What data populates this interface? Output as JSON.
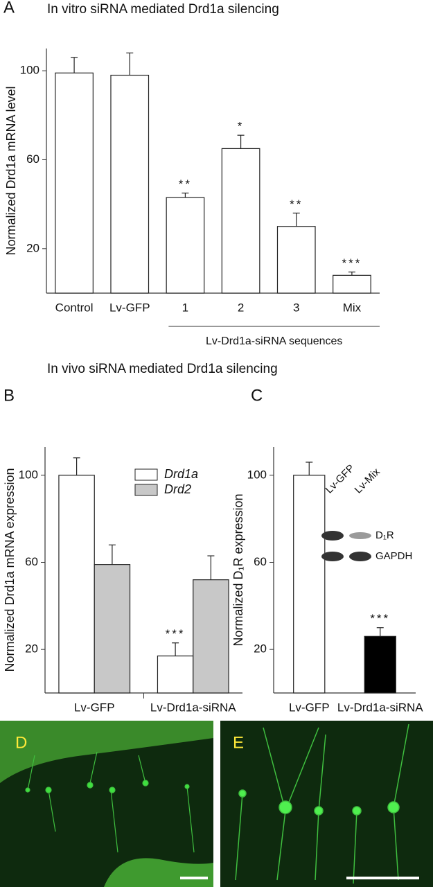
{
  "chart_data": [
    {
      "type": "bar",
      "panel": "A",
      "title": "In vitro siRNA mediated Drd1a silencing",
      "ylabel": "Normalized Drd1a mRNA level",
      "categories": [
        "Control",
        "Lv-GFP",
        "1",
        "2",
        "3",
        "Mix"
      ],
      "series": [
        {
          "color": "#ffffff",
          "values": [
            99,
            98,
            43,
            65,
            30,
            8
          ],
          "errors": [
            7,
            10,
            2,
            6,
            6,
            1.5
          ],
          "significance": [
            null,
            null,
            "**",
            "*",
            "**",
            "***"
          ]
        }
      ],
      "group_label": "Lv-Drd1a-siRNA sequences",
      "ylim": [
        0,
        110
      ],
      "yticks": [
        20,
        60,
        100
      ]
    },
    {
      "type": "bar",
      "panel": "B",
      "title": "In vivo siRNA mediated Drd1a silencing",
      "ylabel": "Normalized Drd1a mRNA expression",
      "categories": [
        "Lv-GFP",
        "Lv-Drd1a-siRNA"
      ],
      "series": [
        {
          "name": "Drd1a",
          "color": "#ffffff",
          "values": [
            100,
            17
          ],
          "errors": [
            8,
            6
          ],
          "significance": [
            null,
            "***"
          ]
        },
        {
          "name": "Drd2",
          "color": "#c8c8c8",
          "values": [
            59,
            52
          ],
          "errors": [
            9,
            11
          ],
          "significance": [
            null,
            null
          ]
        }
      ],
      "ylim": [
        0,
        113
      ],
      "yticks": [
        20,
        60,
        100
      ]
    },
    {
      "type": "bar",
      "panel": "C",
      "ylabel": "Normalized D₁R expression",
      "categories": [
        "Lv-GFP",
        "Lv-Drd1a-siRNA"
      ],
      "series": [
        {
          "colors": [
            "#ffffff",
            "#000000"
          ],
          "values": [
            100,
            26
          ],
          "errors": [
            6,
            4
          ],
          "significance": [
            null,
            "***"
          ]
        }
      ],
      "inset": {
        "lanes": [
          "Lv-GFP",
          "Lv-Mix"
        ],
        "bands": [
          "D₁R",
          "GAPDH"
        ]
      },
      "ylim": [
        0,
        113
      ],
      "yticks": [
        20,
        60,
        100
      ]
    }
  ],
  "images": [
    {
      "panel": "D"
    },
    {
      "panel": "E"
    }
  ]
}
